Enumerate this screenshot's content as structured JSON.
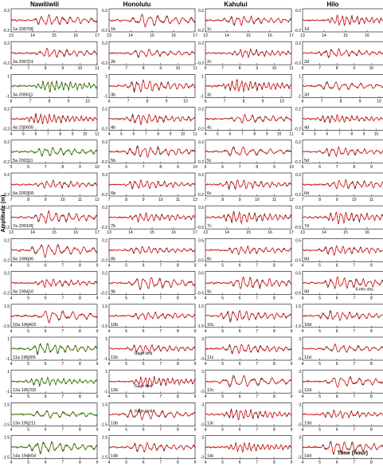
{
  "figure": {
    "ylabel": "Amplitude (m)",
    "time_label": "Time (hour)",
    "columns": [
      "Nawiliwili",
      "Honolulu",
      "Kahului",
      "Hilo"
    ],
    "notes": {
      "gage_limit": "Gage limit",
      "six_min_obs": "6-min obs."
    }
  },
  "chart_data": {
    "type": "line",
    "grid": false,
    "legend": "none",
    "colors": {
      "observed": "#000000",
      "model": "#ff0000",
      "alternate": "#00b000"
    },
    "ylabel": "Amplitude (m)",
    "columns": [
      "Nawiliwili",
      "Honolulu",
      "Kahului",
      "Hilo"
    ],
    "rows": [
      {
        "row": 1,
        "event": "200706",
        "xlim": [
          13,
          17
        ],
        "xticks": [
          13,
          14,
          15,
          16,
          17
        ],
        "ylim_by_col": [
          [
            -0.2,
            0.2
          ],
          [
            -0.2,
            0.2
          ],
          [
            -0.2,
            0.2
          ],
          [
            -0.2,
            0.2
          ]
        ],
        "green": false
      },
      {
        "row": 2,
        "event": "200701",
        "xlim": [
          6,
          11
        ],
        "xticks": [
          6,
          7,
          8,
          9,
          10,
          11
        ],
        "ylim_by_col": [
          [
            -0.2,
            0.2
          ],
          [
            -0.2,
            0.2
          ],
          [
            -0.2,
            0.2
          ],
          [
            -0.2,
            0.2
          ]
        ],
        "green": false
      },
      {
        "row": 3,
        "event": "200611",
        "xlim": [
          6,
          10.5
        ],
        "xticks": [
          6,
          7,
          8,
          9,
          10
        ],
        "ylim_by_col": [
          [
            -1,
            1
          ],
          [
            -1,
            1
          ],
          [
            -1,
            1
          ],
          [
            -1,
            1
          ]
        ],
        "green": true
      },
      {
        "row": 4,
        "event": "200605",
        "xlim": [
          4,
          11
        ],
        "xticks": [
          4,
          5,
          6,
          7,
          8,
          9,
          10,
          11
        ],
        "ylim_by_col": [
          [
            -0.2,
            0.2
          ],
          [
            -0.2,
            0.2
          ],
          [
            -0.2,
            0.2
          ],
          [
            -0.2,
            0.2
          ]
        ],
        "green": false
      },
      {
        "row": 5,
        "event": "200311",
        "xlim": [
          5,
          10
        ],
        "xticks": [
          5,
          6,
          7,
          8,
          9,
          10
        ],
        "ylim_by_col": [
          [
            -0.2,
            0.2
          ],
          [
            -0.2,
            0.2
          ],
          [
            -0.2,
            0.2
          ],
          [
            -0.2,
            0.2
          ]
        ],
        "green": true
      },
      {
        "row": 6,
        "event": "200309",
        "xlim": [
          7,
          12
        ],
        "xticks": [
          7,
          8,
          9,
          10,
          11,
          12
        ],
        "ylim_by_col": [
          [
            -0.2,
            0.2
          ],
          [
            -0.2,
            0.2
          ],
          [
            -0.2,
            0.2
          ],
          [
            -0.2,
            0.2
          ]
        ],
        "green": false
      },
      {
        "row": 7,
        "event": "200106",
        "xlim": [
          13,
          17
        ],
        "xticks": [
          13,
          14,
          15,
          16,
          17
        ],
        "ylim_by_col": [
          [
            -0.2,
            0.2
          ],
          [
            -0.2,
            0.2
          ],
          [
            -0.5,
            0.5
          ],
          [
            -0.5,
            0.5
          ]
        ],
        "green": false
      },
      {
        "row": 8,
        "event": "199606",
        "xlim": [
          4,
          9
        ],
        "xticks": [
          4,
          5,
          6,
          7,
          8,
          9
        ],
        "ylim_by_col": [
          [
            -0.2,
            0.2
          ],
          [
            -0.2,
            0.2
          ],
          [
            -0.5,
            0.5
          ],
          [
            -0.5,
            0.5
          ]
        ],
        "green": false
      },
      {
        "row": 9,
        "event": "199410",
        "xlim": [
          4,
          9
        ],
        "xticks": [
          4,
          5,
          6,
          7,
          8,
          9
        ],
        "ylim_by_col": [
          [
            -0.2,
            0.2
          ],
          [
            -0.2,
            0.2
          ],
          [
            -0.5,
            0.5
          ],
          [
            -0.5,
            0.5
          ]
        ],
        "green": false
      },
      {
        "row": 10,
        "event": "196403",
        "xlim": [
          4,
          9
        ],
        "xticks": [
          4,
          5,
          6,
          7,
          8,
          9
        ],
        "ylim_by_col": [
          [
            -1.5,
            1.5
          ],
          [
            -1.5,
            1.5
          ],
          [
            -1.5,
            1.5
          ],
          [
            -1.5,
            1.5
          ]
        ],
        "green": false
      },
      {
        "row": 11,
        "event": "196005",
        "xlim": [
          4,
          9
        ],
        "xticks": [
          4,
          5,
          6,
          7,
          8,
          9
        ],
        "ylim_by_col": [
          [
            -1,
            1
          ],
          [
            -1,
            1
          ],
          [
            -3,
            3
          ],
          [
            -3,
            3
          ]
        ],
        "green": true
      },
      {
        "row": 12,
        "event": "195703",
        "xlim": [
          4,
          9
        ],
        "xticks": [
          4,
          5,
          6,
          7,
          8,
          9
        ],
        "ylim_by_col": [
          [
            -1,
            1
          ],
          [
            -1,
            1
          ],
          [
            -3,
            3
          ],
          [
            -3,
            3
          ]
        ],
        "green": true
      },
      {
        "row": 13,
        "event": "195211",
        "xlim": [
          4,
          9
        ],
        "xticks": [
          4,
          5,
          6,
          7,
          8,
          9
        ],
        "ylim_by_col": [
          [
            -1.5,
            1.5
          ],
          [
            -1.5,
            1.5
          ],
          [
            -3,
            3
          ],
          [
            -3,
            3
          ]
        ],
        "green": true
      },
      {
        "row": 14,
        "event": "194604",
        "xlim": [
          4,
          9
        ],
        "xticks": [
          4,
          5,
          6,
          7,
          8,
          9
        ],
        "ylim_by_col": [
          [
            -1.5,
            1.5
          ],
          [
            -1.5,
            1.5
          ],
          [
            -3,
            3
          ],
          [
            -3,
            3
          ]
        ],
        "green": true
      }
    ],
    "annotations": [
      {
        "panel": "11b",
        "text": "Gage limit"
      },
      {
        "panel": "12b",
        "text": "Gage limit"
      },
      {
        "panel": "13b",
        "text": "Gage limit"
      },
      {
        "panel": "9d",
        "text": "6-min obs."
      },
      {
        "panel": "14d",
        "text": "Time (hour)"
      }
    ]
  }
}
